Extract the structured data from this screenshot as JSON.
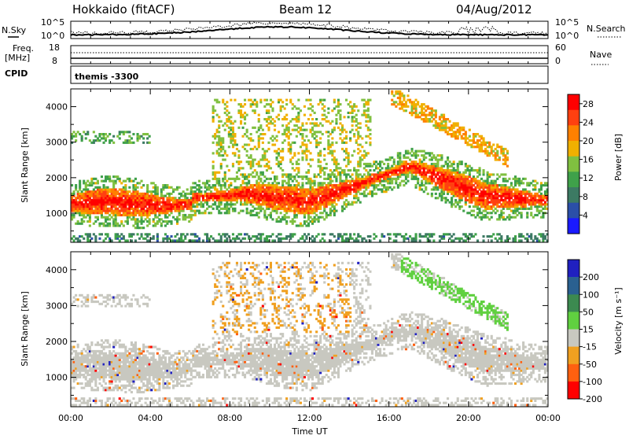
{
  "header": {
    "station": "Hokkaido (fitACF)",
    "beam": "Beam 12",
    "date": "04/Aug/2012"
  },
  "summary": {
    "nsky_label": "N.Sky",
    "nsearch_label": "N.Search",
    "freq_label_line1": "Freq.",
    "freq_label_line2": "[MHz]",
    "nave_label": "Nave",
    "cpid_label": "CPID",
    "cpid_value": "themis -3300",
    "nsky_ticks": [
      "10^5",
      "10^0"
    ],
    "nsearch_ticks": [
      "10^5",
      "10^0"
    ],
    "freq_ticks": [
      "18",
      "8"
    ],
    "nave_ticks": [
      "60",
      "0"
    ]
  },
  "chart_data": [
    {
      "type": "heatmap",
      "name": "power",
      "ylabel": "Slant Range [km]",
      "xlabel": "",
      "x_ticks": [
        "00:00",
        "04:00",
        "08:00",
        "12:00",
        "16:00",
        "20:00",
        "00:00"
      ],
      "x_range_hours": [
        0,
        24
      ],
      "y_ticks": [
        1000,
        2000,
        3000,
        4000
      ],
      "y_range_km": [
        180,
        4500
      ],
      "colorbar_label": "Power [dB]",
      "colorbar_ticks": [
        4,
        8,
        12,
        16,
        20,
        24,
        28
      ],
      "colorbar_range": [
        0,
        30
      ],
      "colors": [
        "#1a1aff",
        "#2b4fa8",
        "#3c7a63",
        "#3fa14a",
        "#80c040",
        "#f0b000",
        "#ff8000",
        "#ff4010",
        "#ff0000"
      ]
    },
    {
      "type": "heatmap",
      "name": "velocity",
      "ylabel": "Slant Range [km]",
      "xlabel": "Time UT",
      "x_ticks": [
        "00:00",
        "04:00",
        "08:00",
        "12:00",
        "16:00",
        "20:00",
        "00:00"
      ],
      "x_range_hours": [
        0,
        24
      ],
      "y_ticks": [
        1000,
        2000,
        3000,
        4000
      ],
      "y_range_km": [
        180,
        4500
      ],
      "colorbar_label": "Velocity [m s⁻¹]",
      "colorbar_ticks": [
        200,
        100,
        50,
        15,
        -15,
        -50,
        -100,
        -200
      ],
      "colors": [
        "#2020c0",
        "#2a6090",
        "#3c8a50",
        "#60d040",
        "#c8c8c0",
        "#f0a020",
        "#ff6010",
        "#ff0000"
      ]
    }
  ]
}
